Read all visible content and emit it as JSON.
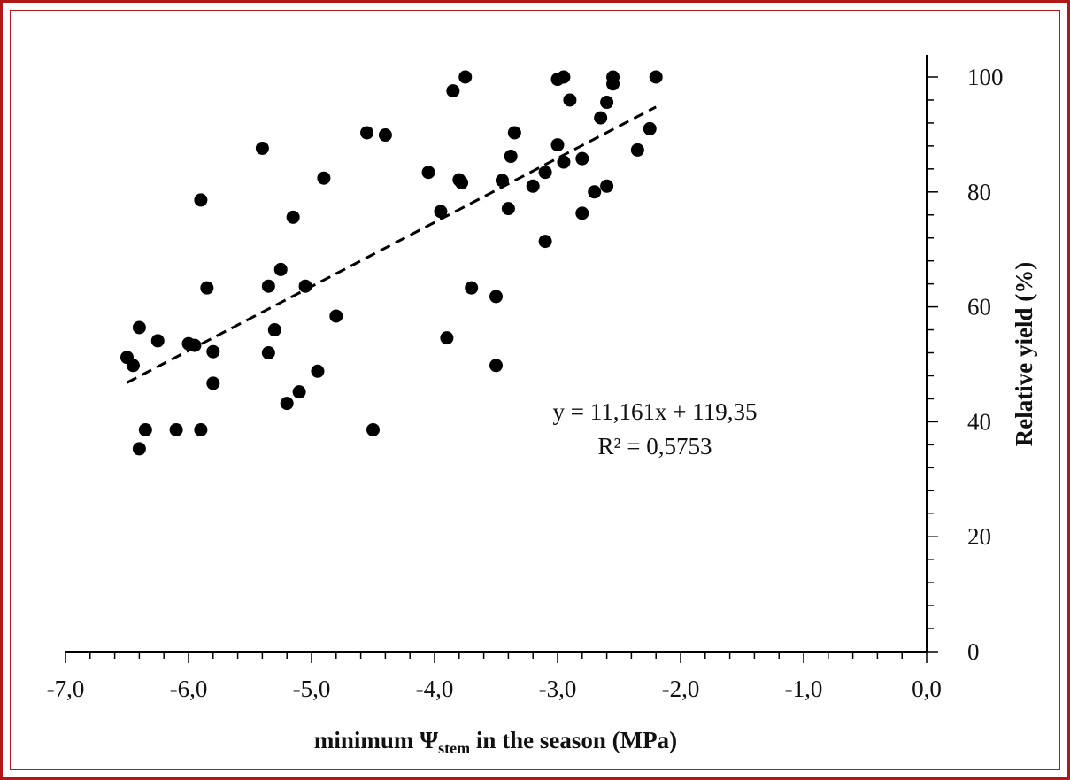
{
  "chart_data": {
    "type": "scatter",
    "title": "",
    "xlabel_main": "minimum Ψ",
    "xlabel_sub": "stem",
    "xlabel_tail": " in the season (MPa)",
    "ylabel": "Relative yield (%)",
    "xlim": [
      -7.0,
      0.0
    ],
    "ylim": [
      0,
      100
    ],
    "x_ticks": [
      -7.0,
      -6.0,
      -5.0,
      -4.0,
      -3.0,
      -2.0,
      -1.0,
      0.0
    ],
    "x_tick_labels": [
      "-7,0",
      "-6,0",
      "-5,0",
      "-4,0",
      "-3,0",
      "-2,0",
      "-1,0",
      "0,0"
    ],
    "y_ticks": [
      0,
      20,
      40,
      60,
      80,
      100
    ],
    "y_tick_labels": [
      "0",
      "20",
      "40",
      "60",
      "80",
      "100"
    ],
    "y_axis_position": "right",
    "grid": false,
    "marker_color": "#000000",
    "trendline": {
      "slope": 11.161,
      "intercept": 119.35,
      "x_range": [
        -6.5,
        -2.2
      ],
      "style": "dashed"
    },
    "equation_label": "y = 11,161x + 119,35",
    "r2_label": "R² = 0,5753",
    "points": [
      {
        "x": -6.5,
        "y": 51.2
      },
      {
        "x": -6.45,
        "y": 49.8
      },
      {
        "x": -6.4,
        "y": 56.4
      },
      {
        "x": -6.35,
        "y": 38.6
      },
      {
        "x": -6.4,
        "y": 35.3
      },
      {
        "x": -6.25,
        "y": 54.1
      },
      {
        "x": -6.1,
        "y": 38.6
      },
      {
        "x": -6.0,
        "y": 53.6
      },
      {
        "x": -5.95,
        "y": 53.3
      },
      {
        "x": -5.9,
        "y": 78.6
      },
      {
        "x": -5.9,
        "y": 38.6
      },
      {
        "x": -5.85,
        "y": 63.3
      },
      {
        "x": -5.8,
        "y": 52.2
      },
      {
        "x": -5.8,
        "y": 46.7
      },
      {
        "x": -5.4,
        "y": 87.6
      },
      {
        "x": -5.35,
        "y": 63.6
      },
      {
        "x": -5.35,
        "y": 52.0
      },
      {
        "x": -5.3,
        "y": 56.0
      },
      {
        "x": -5.25,
        "y": 66.5
      },
      {
        "x": -5.2,
        "y": 43.2
      },
      {
        "x": -5.15,
        "y": 75.6
      },
      {
        "x": -5.1,
        "y": 45.2
      },
      {
        "x": -5.05,
        "y": 63.6
      },
      {
        "x": -4.95,
        "y": 48.8
      },
      {
        "x": -4.9,
        "y": 82.4
      },
      {
        "x": -4.8,
        "y": 58.4
      },
      {
        "x": -4.55,
        "y": 90.3
      },
      {
        "x": -4.5,
        "y": 38.6
      },
      {
        "x": -4.4,
        "y": 89.9
      },
      {
        "x": -4.05,
        "y": 83.4
      },
      {
        "x": -3.95,
        "y": 76.6
      },
      {
        "x": -3.9,
        "y": 54.6
      },
      {
        "x": -3.85,
        "y": 97.6
      },
      {
        "x": -3.8,
        "y": 82.1
      },
      {
        "x": -3.78,
        "y": 81.6
      },
      {
        "x": -3.75,
        "y": 100.0
      },
      {
        "x": -3.7,
        "y": 63.3
      },
      {
        "x": -3.5,
        "y": 61.8
      },
      {
        "x": -3.5,
        "y": 49.8
      },
      {
        "x": -3.45,
        "y": 82.0
      },
      {
        "x": -3.4,
        "y": 77.1
      },
      {
        "x": -3.38,
        "y": 86.2
      },
      {
        "x": -3.35,
        "y": 90.3
      },
      {
        "x": -3.2,
        "y": 81.0
      },
      {
        "x": -3.1,
        "y": 83.4
      },
      {
        "x": -3.1,
        "y": 71.4
      },
      {
        "x": -3.0,
        "y": 99.6
      },
      {
        "x": -3.0,
        "y": 88.2
      },
      {
        "x": -2.95,
        "y": 100.0
      },
      {
        "x": -2.95,
        "y": 85.2
      },
      {
        "x": -2.9,
        "y": 96.0
      },
      {
        "x": -2.8,
        "y": 85.8
      },
      {
        "x": -2.8,
        "y": 76.3
      },
      {
        "x": -2.7,
        "y": 80.0
      },
      {
        "x": -2.65,
        "y": 92.9
      },
      {
        "x": -2.6,
        "y": 95.6
      },
      {
        "x": -2.6,
        "y": 81.0
      },
      {
        "x": -2.55,
        "y": 100.0
      },
      {
        "x": -2.55,
        "y": 98.8
      },
      {
        "x": -2.35,
        "y": 87.3
      },
      {
        "x": -2.25,
        "y": 91.0
      },
      {
        "x": -2.2,
        "y": 100.0
      }
    ]
  }
}
